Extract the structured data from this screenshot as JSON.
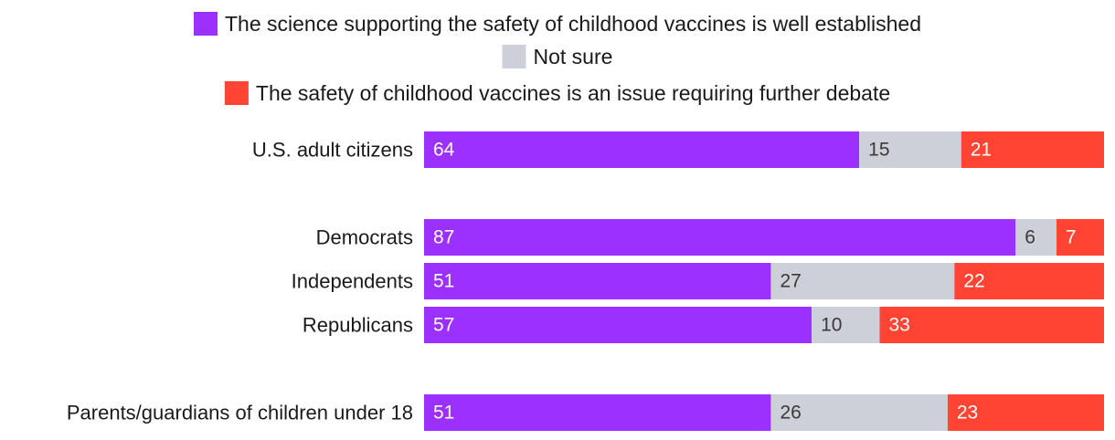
{
  "chart_data": {
    "type": "bar",
    "orientation": "horizontal",
    "stacked": true,
    "title": "",
    "xlabel": "",
    "ylabel": "",
    "xlim": [
      0,
      100
    ],
    "grid": false,
    "legend_position": "top",
    "categories": [
      "U.S. adult citizens",
      "Democrats",
      "Independents",
      "Republicans",
      "Parents/guardians of children under 18"
    ],
    "series": [
      {
        "name": "The science supporting the safety of childhood vaccines is well established",
        "color": "#9b30ff",
        "label_color": "#ffffff",
        "values": [
          64,
          87,
          51,
          57,
          51
        ]
      },
      {
        "name": "Not sure",
        "color": "#cdd0d8",
        "label_color": "#3a3a3a",
        "values": [
          15,
          6,
          27,
          10,
          26
        ]
      },
      {
        "name": "The safety of childhood vaccines is an issue requiring further debate",
        "color": "#ff4433",
        "label_color": "#ffffff",
        "values": [
          21,
          7,
          22,
          33,
          23
        ]
      }
    ]
  }
}
